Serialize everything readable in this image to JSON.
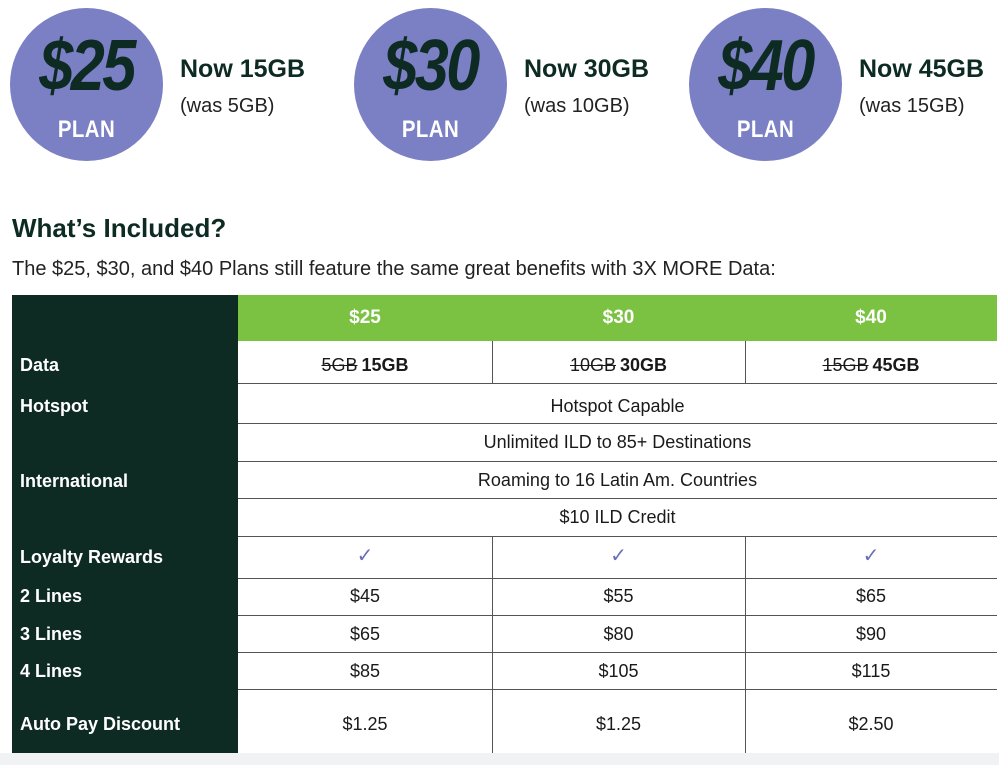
{
  "plans": [
    {
      "price": "$25",
      "plan_label": "PLAN",
      "now": "Now 15GB",
      "was": "(was 5GB)"
    },
    {
      "price": "$30",
      "plan_label": "PLAN",
      "now": "Now 30GB",
      "was": "(was 10GB)"
    },
    {
      "price": "$40",
      "plan_label": "PLAN",
      "now": "Now 45GB",
      "was": "(was 15GB)"
    }
  ],
  "section": {
    "title": "What’s Included?",
    "subtitle": "The $25, $30, and $40 Plans still feature the same great benefits with 3X MORE Data:"
  },
  "table": {
    "headers": [
      "$25",
      "$30",
      "$40"
    ],
    "labels": {
      "data": "Data",
      "hotspot": "Hotspot",
      "international": "International",
      "loyalty": "Loyalty Rewards",
      "lines2": "2 Lines",
      "lines3": "3 Lines",
      "lines4": "4 Lines",
      "autopay": "Auto Pay Discount"
    },
    "data": [
      {
        "old": "5GB",
        "new": "15GB"
      },
      {
        "old": "10GB",
        "new": "30GB"
      },
      {
        "old": "15GB",
        "new": "45GB"
      }
    ],
    "hotspot": "Hotspot Capable",
    "international": [
      "Unlimited ILD to 85+ Destinations",
      "Roaming to 16 Latin Am. Countries",
      "$10 ILD Credit"
    ],
    "loyalty_mark": "✓",
    "lines2": [
      "$45",
      "$55",
      "$65"
    ],
    "lines3": [
      "$65",
      "$80",
      "$90"
    ],
    "lines4": [
      "$85",
      "$105",
      "$115"
    ],
    "autopay": [
      "$1.25",
      "$1.25",
      "$2.50"
    ]
  },
  "colors": {
    "circle": "#7b7fc4",
    "dark_green": "#0d2b22",
    "header_green": "#7cc242",
    "check": "#6b6fb8"
  }
}
